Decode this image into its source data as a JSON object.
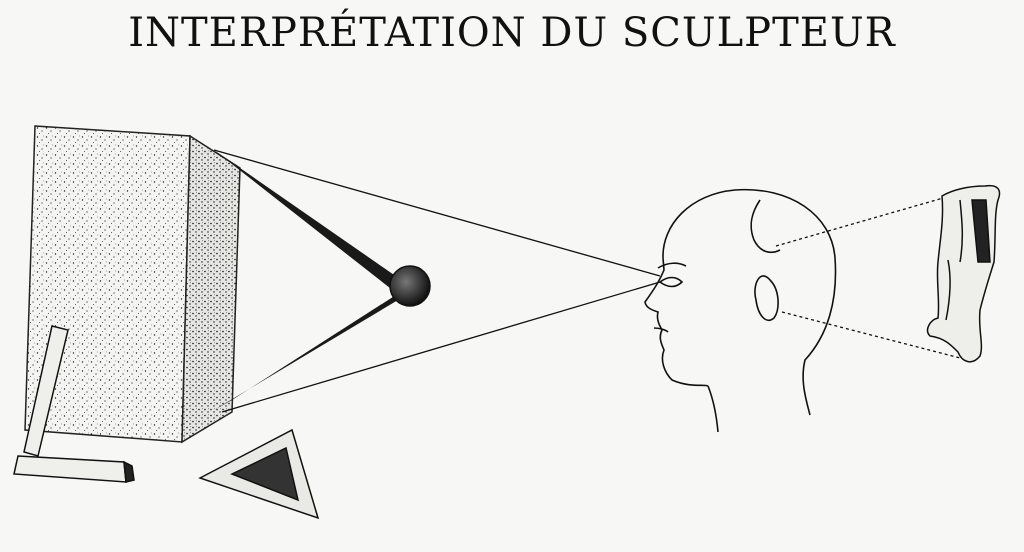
{
  "title": "INTERPRÉTATION DU SCULPTEUR",
  "colors": {
    "ink": "#111111",
    "paper": "#f7f7f5"
  }
}
